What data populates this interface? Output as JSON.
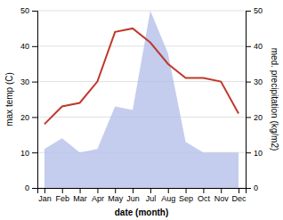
{
  "chart_data": {
    "type": "line",
    "categories": [
      "Jan",
      "Feb",
      "Mar",
      "Apr",
      "May",
      "Jun",
      "Jul",
      "Aug",
      "Sep",
      "Oct",
      "Nov",
      "Dec"
    ],
    "series": [
      {
        "type": "area",
        "axis": "y2",
        "color": "#b0bce8",
        "values": [
          11,
          14,
          10,
          11,
          23,
          22,
          50,
          38,
          13,
          10,
          10,
          10
        ]
      },
      {
        "type": "line",
        "color": "#c0392b",
        "values": [
          18,
          23,
          24,
          30,
          44,
          45,
          41,
          35,
          31,
          31,
          30,
          21
        ]
      }
    ],
    "x_label": "date (month)",
    "y_label": "max temp (C)",
    "y2_label": "med. precipitation (kg/m2)",
    "ylim": [
      0,
      50
    ],
    "yticks": [
      0,
      10,
      20,
      30,
      40,
      50
    ],
    "y2lim": [
      0,
      50
    ],
    "y2ticks": [
      0,
      10,
      20,
      30,
      40,
      50
    ],
    "grid": true
  }
}
